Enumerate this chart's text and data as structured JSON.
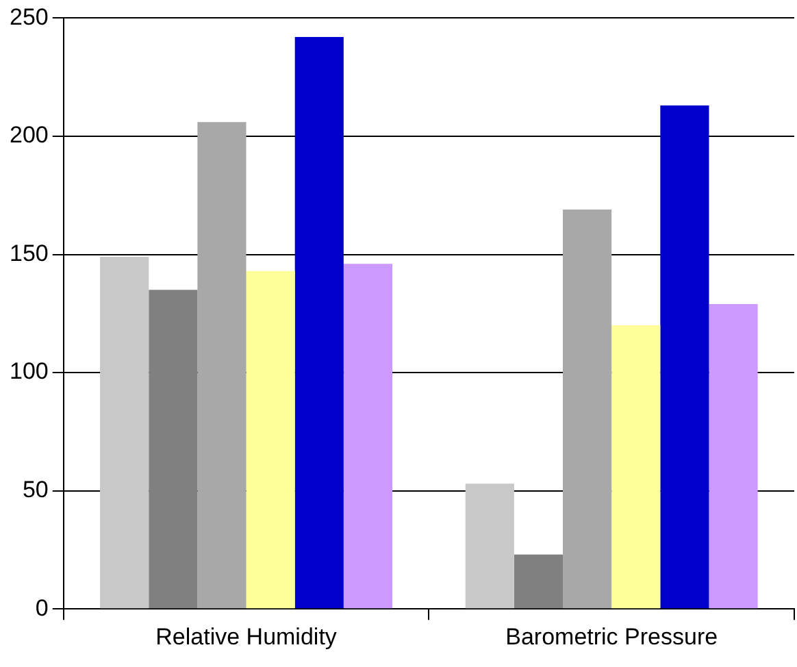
{
  "chart_data": {
    "type": "bar",
    "categories": [
      "Relative Humidity",
      "Barometric Pressure"
    ],
    "series": [
      {
        "color": "#c8c8c8",
        "values": [
          149,
          53
        ]
      },
      {
        "color": "#808080",
        "values": [
          135,
          23
        ]
      },
      {
        "color": "#a8a8a8",
        "values": [
          206,
          169
        ]
      },
      {
        "color": "#ffff99",
        "values": [
          143,
          120
        ]
      },
      {
        "color": "#0000cc",
        "values": [
          242,
          213
        ]
      },
      {
        "color": "#cc99ff",
        "values": [
          146,
          129
        ]
      }
    ],
    "ylim": [
      0,
      250
    ],
    "yticks": [
      0,
      50,
      100,
      150,
      200,
      250
    ],
    "grid": "y",
    "legend": false
  }
}
